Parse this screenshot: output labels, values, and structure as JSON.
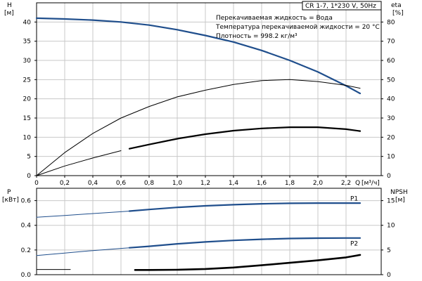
{
  "chart_data": [
    {
      "type": "line",
      "panel": "top",
      "model_label": "CR 1-7, 1*230 V, 50Hz",
      "info_lines": [
        "Перекачиваемая жидкость = Вода",
        "Температура перекачиваемой жидкости = 20 °C",
        "Плотность = 998.2 кг/м³"
      ],
      "left_axis": {
        "name": "H",
        "unit": "[м]",
        "range": [
          0,
          45
        ],
        "ticks": [
          "0",
          "5",
          "10",
          "15",
          "20",
          "25",
          "30",
          "35",
          "40"
        ]
      },
      "right_axis": {
        "name": "eta",
        "unit": "[%]",
        "range": [
          0,
          90
        ],
        "ticks": [
          "0",
          "10",
          "20",
          "30",
          "40",
          "50",
          "60",
          "70",
          "80"
        ]
      },
      "x_axis": {
        "name": "Q",
        "unit": "[м³/ч]",
        "range": [
          0,
          2.45
        ],
        "ticks": [
          "0",
          "0,2",
          "0,4",
          "0,6",
          "0,8",
          "1,0",
          "1,2",
          "1,4",
          "1,6",
          "1,8",
          "2,0",
          "2,2"
        ]
      },
      "grid": true,
      "series": [
        {
          "axis": "left",
          "color": "#1f4e8c",
          "width": 2.2,
          "x": [
            0,
            0.2,
            0.4,
            0.6,
            0.8,
            1.0,
            1.2,
            1.4,
            1.6,
            1.8,
            2.0,
            2.2,
            2.3
          ],
          "y": [
            41,
            40.8,
            40.5,
            40.0,
            39.2,
            38.0,
            36.5,
            34.8,
            32.6,
            30.0,
            27.0,
            23.4,
            21.4
          ]
        },
        {
          "axis": "right",
          "color": "#000000",
          "width": 1,
          "x": [
            0,
            0.2,
            0.4,
            0.6,
            0.8,
            1.0,
            1.2,
            1.4,
            1.6,
            1.8,
            2.0,
            2.2,
            2.3
          ],
          "y": [
            0,
            12,
            22,
            30,
            36,
            41,
            44.5,
            47.5,
            49.5,
            50,
            49,
            47,
            45.5
          ]
        },
        {
          "axis": "left",
          "color": "#000000",
          "width": 1,
          "x": [
            0,
            0.2,
            0.4,
            0.6
          ],
          "y": [
            0,
            2.5,
            4.6,
            6.5
          ]
        },
        {
          "axis": "left",
          "color": "#000000",
          "width": 2.2,
          "x": [
            0.66,
            0.8,
            1.0,
            1.2,
            1.4,
            1.6,
            1.8,
            2.0,
            2.2,
            2.3
          ],
          "y": [
            7.0,
            8.1,
            9.6,
            10.8,
            11.7,
            12.3,
            12.6,
            12.6,
            12.1,
            11.6
          ]
        }
      ]
    },
    {
      "type": "line",
      "panel": "bottom",
      "left_axis": {
        "name": "P",
        "unit": "[кВт]",
        "range": [
          0,
          0.7
        ],
        "ticks": [
          "0.0",
          "0.2",
          "0.4",
          "0.6"
        ]
      },
      "right_axis": {
        "name": "NPSH",
        "unit": "[м]",
        "range": [
          0,
          17.5
        ],
        "ticks": [
          "0",
          "5",
          "10",
          "15"
        ]
      },
      "x_axis": {
        "range": [
          0,
          2.45
        ]
      },
      "grid": true,
      "series": [
        {
          "name": "P1",
          "axis": "left",
          "color": "#1f4e8c",
          "width": 1,
          "x": [
            0,
            0.2,
            0.4,
            0.6,
            0.66
          ],
          "y": [
            0.465,
            0.48,
            0.495,
            0.51,
            0.515
          ]
        },
        {
          "name": "P1",
          "axis": "left",
          "color": "#1f4e8c",
          "width": 2.2,
          "x": [
            0.66,
            0.8,
            1.0,
            1.2,
            1.4,
            1.6,
            1.8,
            2.0,
            2.2,
            2.3
          ],
          "y": [
            0.515,
            0.528,
            0.545,
            0.558,
            0.567,
            0.574,
            0.578,
            0.58,
            0.58,
            0.58
          ]
        },
        {
          "name": "P2",
          "axis": "left",
          "color": "#1f4e8c",
          "width": 1,
          "x": [
            0,
            0.2,
            0.4,
            0.6,
            0.66
          ],
          "y": [
            0.155,
            0.175,
            0.195,
            0.213,
            0.218
          ]
        },
        {
          "name": "P2",
          "axis": "left",
          "color": "#1f4e8c",
          "width": 2.2,
          "x": [
            0.66,
            0.8,
            1.0,
            1.2,
            1.4,
            1.6,
            1.8,
            2.0,
            2.2,
            2.3
          ],
          "y": [
            0.218,
            0.23,
            0.25,
            0.265,
            0.278,
            0.287,
            0.293,
            0.296,
            0.297,
            0.297
          ]
        },
        {
          "axis": "right",
          "color": "#000000",
          "width": 1,
          "x": [
            0,
            0.24
          ],
          "y": [
            1.05,
            1.05
          ]
        },
        {
          "axis": "right",
          "color": "#000000",
          "width": 2.6,
          "x": [
            0.7,
            0.8,
            1.0,
            1.2,
            1.4,
            1.6,
            1.8,
            2.0,
            2.2,
            2.3
          ],
          "y": [
            0.95,
            0.95,
            1.0,
            1.15,
            1.45,
            1.9,
            2.4,
            2.9,
            3.5,
            4.0
          ]
        }
      ],
      "series_labels": [
        {
          "text": "P1",
          "x": 2.23,
          "y": 0.6
        },
        {
          "text": "P2",
          "x": 2.23,
          "y": 0.235
        }
      ]
    }
  ]
}
